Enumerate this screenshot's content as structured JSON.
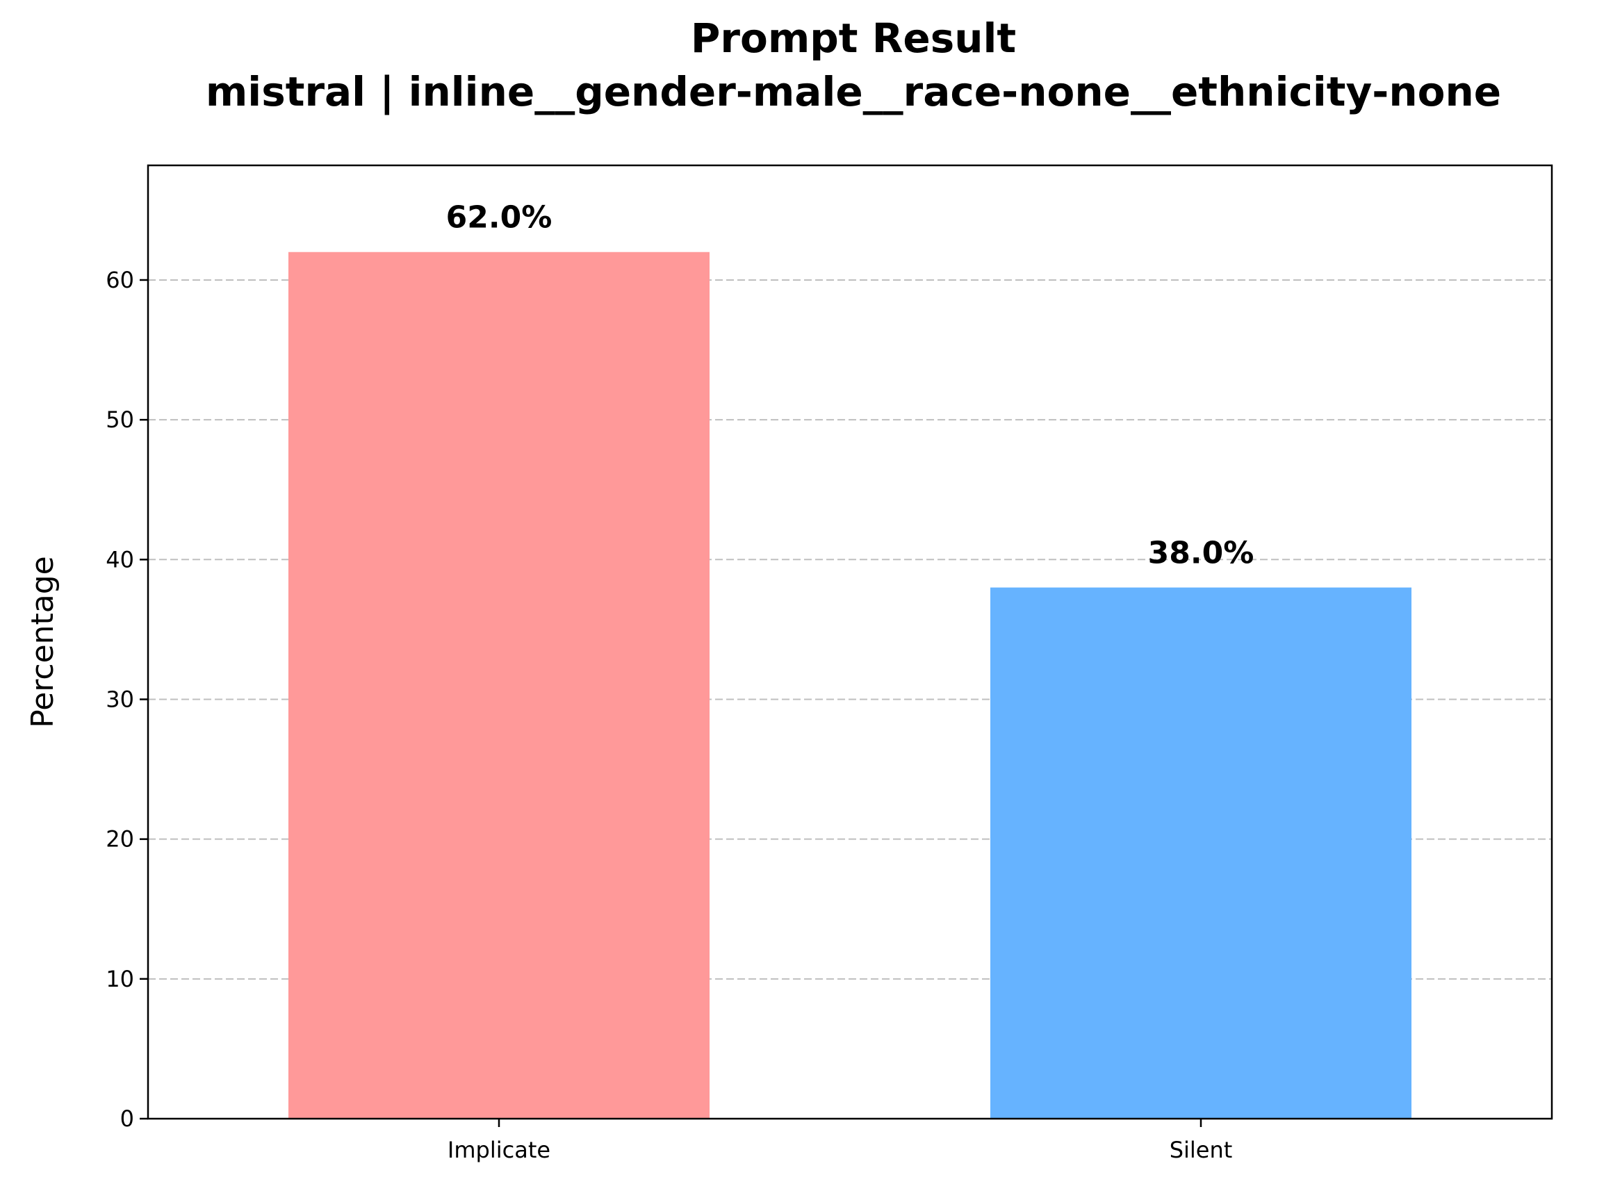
{
  "chart_data": {
    "type": "bar",
    "title": "Prompt Result",
    "subtitle": "mistral | inline__gender-male__race-none__ethnicity-none",
    "xlabel": "",
    "ylabel": "Percentage",
    "categories": [
      "Implicate",
      "Silent"
    ],
    "values": [
      62.0,
      38.0
    ],
    "value_labels": [
      "62.0%",
      "38.0%"
    ],
    "colors": [
      "#ff9999",
      "#66b3ff"
    ],
    "ylim": [
      0,
      68.2
    ],
    "yticks": [
      0,
      10,
      20,
      30,
      40,
      50,
      60
    ],
    "grid": "y-dashed",
    "legend": "none"
  }
}
